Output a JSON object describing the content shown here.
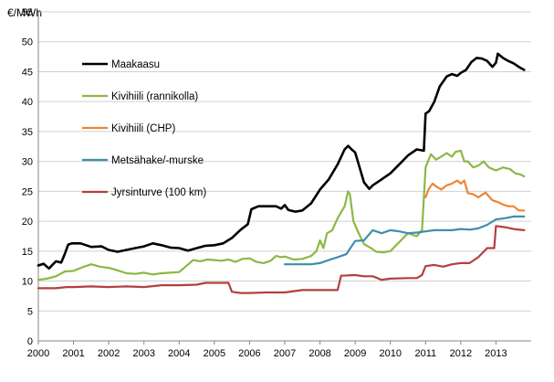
{
  "chart_data": {
    "type": "line",
    "ylabel": "€/MWh",
    "xlabel": "",
    "title": "",
    "ylim": [
      0,
      55
    ],
    "yticks": [
      0,
      5,
      10,
      15,
      20,
      25,
      30,
      35,
      40,
      45,
      50,
      55
    ],
    "xlim": [
      2000,
      2014
    ],
    "xticks": [
      2000,
      2001,
      2002,
      2003,
      2004,
      2005,
      2006,
      2007,
      2008,
      2009,
      2010,
      2011,
      2012,
      2013
    ],
    "grid": "horizontal",
    "legend_position": "top-left",
    "series": [
      {
        "name": "Maakaasu",
        "color": "#000000",
        "points": [
          [
            2000.0,
            12.6
          ],
          [
            2000.15,
            12.9
          ],
          [
            2000.3,
            12.1
          ],
          [
            2000.5,
            13.3
          ],
          [
            2000.65,
            13.1
          ],
          [
            2000.75,
            14.5
          ],
          [
            2000.85,
            16.1
          ],
          [
            2000.95,
            16.3
          ],
          [
            2001.2,
            16.3
          ],
          [
            2001.5,
            15.7
          ],
          [
            2001.8,
            15.8
          ],
          [
            2002.0,
            15.2
          ],
          [
            2002.25,
            14.9
          ],
          [
            2002.5,
            15.2
          ],
          [
            2002.75,
            15.5
          ],
          [
            2003.0,
            15.8
          ],
          [
            2003.25,
            16.3
          ],
          [
            2003.5,
            16.0
          ],
          [
            2003.75,
            15.6
          ],
          [
            2004.0,
            15.5
          ],
          [
            2004.25,
            15.1
          ],
          [
            2004.5,
            15.5
          ],
          [
            2004.75,
            15.9
          ],
          [
            2005.0,
            16.0
          ],
          [
            2005.25,
            16.3
          ],
          [
            2005.5,
            17.2
          ],
          [
            2005.75,
            18.6
          ],
          [
            2005.95,
            19.5
          ],
          [
            2006.05,
            22.0
          ],
          [
            2006.25,
            22.5
          ],
          [
            2006.5,
            22.5
          ],
          [
            2006.75,
            22.5
          ],
          [
            2006.9,
            22.1
          ],
          [
            2007.0,
            22.7
          ],
          [
            2007.1,
            21.9
          ],
          [
            2007.3,
            21.6
          ],
          [
            2007.5,
            21.8
          ],
          [
            2007.75,
            23.0
          ],
          [
            2008.0,
            25.3
          ],
          [
            2008.25,
            27.0
          ],
          [
            2008.5,
            29.5
          ],
          [
            2008.7,
            32.0
          ],
          [
            2008.8,
            32.6
          ],
          [
            2008.9,
            32.0
          ],
          [
            2009.0,
            31.5
          ],
          [
            2009.1,
            29.5
          ],
          [
            2009.25,
            26.5
          ],
          [
            2009.4,
            25.4
          ],
          [
            2009.5,
            26.0
          ],
          [
            2009.75,
            27.0
          ],
          [
            2010.0,
            28.0
          ],
          [
            2010.25,
            29.5
          ],
          [
            2010.5,
            31.0
          ],
          [
            2010.75,
            32.0
          ],
          [
            2010.95,
            31.8
          ],
          [
            2011.0,
            38.0
          ],
          [
            2011.1,
            38.4
          ],
          [
            2011.25,
            40.0
          ],
          [
            2011.4,
            42.5
          ],
          [
            2011.6,
            44.2
          ],
          [
            2011.75,
            44.6
          ],
          [
            2011.9,
            44.3
          ],
          [
            2012.0,
            44.8
          ],
          [
            2012.15,
            45.3
          ],
          [
            2012.3,
            46.6
          ],
          [
            2012.45,
            47.3
          ],
          [
            2012.6,
            47.2
          ],
          [
            2012.75,
            46.8
          ],
          [
            2012.9,
            45.8
          ],
          [
            2013.0,
            46.5
          ],
          [
            2013.05,
            48.0
          ],
          [
            2013.2,
            47.3
          ],
          [
            2013.35,
            46.8
          ],
          [
            2013.5,
            46.4
          ],
          [
            2013.65,
            45.8
          ],
          [
            2013.8,
            45.3
          ]
        ]
      },
      {
        "name": "Kivihiili (rannikolla)",
        "color": "#8db746",
        "points": [
          [
            2000.0,
            10.2
          ],
          [
            2000.25,
            10.4
          ],
          [
            2000.5,
            10.8
          ],
          [
            2000.75,
            11.6
          ],
          [
            2001.0,
            11.7
          ],
          [
            2001.25,
            12.3
          ],
          [
            2001.5,
            12.8
          ],
          [
            2001.75,
            12.4
          ],
          [
            2002.0,
            12.2
          ],
          [
            2002.25,
            11.8
          ],
          [
            2002.5,
            11.3
          ],
          [
            2002.75,
            11.2
          ],
          [
            2003.0,
            11.4
          ],
          [
            2003.25,
            11.1
          ],
          [
            2003.5,
            11.3
          ],
          [
            2003.75,
            11.4
          ],
          [
            2004.0,
            11.5
          ],
          [
            2004.2,
            12.5
          ],
          [
            2004.4,
            13.5
          ],
          [
            2004.6,
            13.3
          ],
          [
            2004.8,
            13.6
          ],
          [
            2005.0,
            13.5
          ],
          [
            2005.2,
            13.4
          ],
          [
            2005.4,
            13.6
          ],
          [
            2005.6,
            13.2
          ],
          [
            2005.8,
            13.7
          ],
          [
            2006.0,
            13.8
          ],
          [
            2006.2,
            13.2
          ],
          [
            2006.4,
            13.0
          ],
          [
            2006.6,
            13.4
          ],
          [
            2006.75,
            14.2
          ],
          [
            2006.9,
            14.0
          ],
          [
            2007.0,
            14.1
          ],
          [
            2007.25,
            13.6
          ],
          [
            2007.5,
            13.7
          ],
          [
            2007.75,
            14.2
          ],
          [
            2007.9,
            15.0
          ],
          [
            2008.0,
            16.8
          ],
          [
            2008.1,
            15.5
          ],
          [
            2008.2,
            18.0
          ],
          [
            2008.35,
            18.5
          ],
          [
            2008.5,
            20.5
          ],
          [
            2008.7,
            22.5
          ],
          [
            2008.8,
            25.0
          ],
          [
            2008.85,
            24.5
          ],
          [
            2008.95,
            20.0
          ],
          [
            2009.1,
            18.0
          ],
          [
            2009.25,
            16.2
          ],
          [
            2009.45,
            15.5
          ],
          [
            2009.6,
            14.9
          ],
          [
            2009.8,
            14.8
          ],
          [
            2010.0,
            15.0
          ],
          [
            2010.25,
            16.5
          ],
          [
            2010.5,
            18.0
          ],
          [
            2010.75,
            17.5
          ],
          [
            2010.9,
            18.5
          ],
          [
            2011.0,
            29.0
          ],
          [
            2011.15,
            31.2
          ],
          [
            2011.3,
            30.3
          ],
          [
            2011.5,
            31.0
          ],
          [
            2011.6,
            31.4
          ],
          [
            2011.75,
            30.8
          ],
          [
            2011.85,
            31.6
          ],
          [
            2012.0,
            31.8
          ],
          [
            2012.1,
            30.0
          ],
          [
            2012.2,
            30.0
          ],
          [
            2012.35,
            29.0
          ],
          [
            2012.5,
            29.3
          ],
          [
            2012.65,
            30.0
          ],
          [
            2012.8,
            29.0
          ],
          [
            2013.0,
            28.5
          ],
          [
            2013.2,
            29.0
          ],
          [
            2013.4,
            28.7
          ],
          [
            2013.55,
            28.0
          ],
          [
            2013.7,
            27.8
          ],
          [
            2013.8,
            27.5
          ]
        ]
      },
      {
        "name": "Kivihiili (CHP)",
        "color": "#ed8533",
        "points": [
          [
            2011.0,
            24.0
          ],
          [
            2011.1,
            25.5
          ],
          [
            2011.2,
            26.3
          ],
          [
            2011.3,
            25.8
          ],
          [
            2011.45,
            25.3
          ],
          [
            2011.6,
            26.0
          ],
          [
            2011.75,
            26.3
          ],
          [
            2011.9,
            26.8
          ],
          [
            2012.0,
            26.3
          ],
          [
            2012.1,
            26.8
          ],
          [
            2012.2,
            24.7
          ],
          [
            2012.35,
            24.5
          ],
          [
            2012.5,
            24.0
          ],
          [
            2012.7,
            24.8
          ],
          [
            2012.9,
            23.5
          ],
          [
            2013.05,
            23.2
          ],
          [
            2013.2,
            22.8
          ],
          [
            2013.35,
            22.5
          ],
          [
            2013.5,
            22.5
          ],
          [
            2013.65,
            21.8
          ],
          [
            2013.8,
            21.8
          ]
        ]
      },
      {
        "name": "Metsähake/-murske",
        "color": "#3d8fac",
        "points": [
          [
            2007.0,
            12.8
          ],
          [
            2007.25,
            12.8
          ],
          [
            2007.5,
            12.8
          ],
          [
            2007.75,
            12.8
          ],
          [
            2008.0,
            13.0
          ],
          [
            2008.25,
            13.5
          ],
          [
            2008.5,
            14.0
          ],
          [
            2008.75,
            14.5
          ],
          [
            2009.0,
            16.7
          ],
          [
            2009.25,
            16.8
          ],
          [
            2009.5,
            18.5
          ],
          [
            2009.75,
            18.0
          ],
          [
            2010.0,
            18.5
          ],
          [
            2010.25,
            18.3
          ],
          [
            2010.5,
            18.0
          ],
          [
            2010.75,
            18.1
          ],
          [
            2011.0,
            18.3
          ],
          [
            2011.25,
            18.5
          ],
          [
            2011.5,
            18.5
          ],
          [
            2011.75,
            18.5
          ],
          [
            2012.0,
            18.7
          ],
          [
            2012.25,
            18.6
          ],
          [
            2012.5,
            18.8
          ],
          [
            2012.75,
            19.4
          ],
          [
            2013.0,
            20.3
          ],
          [
            2013.25,
            20.5
          ],
          [
            2013.5,
            20.8
          ],
          [
            2013.8,
            20.8
          ]
        ]
      },
      {
        "name": "Jyrsinturve (100 km)",
        "color": "#b2403f",
        "points": [
          [
            2000.0,
            8.8
          ],
          [
            2000.5,
            8.8
          ],
          [
            2000.8,
            9.0
          ],
          [
            2001.0,
            9.0
          ],
          [
            2001.5,
            9.1
          ],
          [
            2002.0,
            9.0
          ],
          [
            2002.5,
            9.1
          ],
          [
            2003.0,
            9.0
          ],
          [
            2003.5,
            9.3
          ],
          [
            2004.0,
            9.3
          ],
          [
            2004.5,
            9.4
          ],
          [
            2004.75,
            9.7
          ],
          [
            2005.0,
            9.7
          ],
          [
            2005.4,
            9.7
          ],
          [
            2005.5,
            8.2
          ],
          [
            2005.75,
            8.0
          ],
          [
            2006.0,
            8.0
          ],
          [
            2006.5,
            8.1
          ],
          [
            2007.0,
            8.1
          ],
          [
            2007.5,
            8.5
          ],
          [
            2008.0,
            8.5
          ],
          [
            2008.5,
            8.5
          ],
          [
            2008.6,
            10.9
          ],
          [
            2009.0,
            11.0
          ],
          [
            2009.25,
            10.8
          ],
          [
            2009.5,
            10.8
          ],
          [
            2009.75,
            10.2
          ],
          [
            2010.0,
            10.4
          ],
          [
            2010.5,
            10.5
          ],
          [
            2010.75,
            10.5
          ],
          [
            2010.9,
            11.0
          ],
          [
            2011.0,
            12.5
          ],
          [
            2011.25,
            12.7
          ],
          [
            2011.5,
            12.4
          ],
          [
            2011.75,
            12.8
          ],
          [
            2012.0,
            13.0
          ],
          [
            2012.25,
            13.0
          ],
          [
            2012.5,
            14.0
          ],
          [
            2012.75,
            15.5
          ],
          [
            2012.95,
            15.5
          ],
          [
            2013.0,
            19.2
          ],
          [
            2013.25,
            19.0
          ],
          [
            2013.5,
            18.7
          ],
          [
            2013.8,
            18.5
          ]
        ]
      }
    ]
  }
}
